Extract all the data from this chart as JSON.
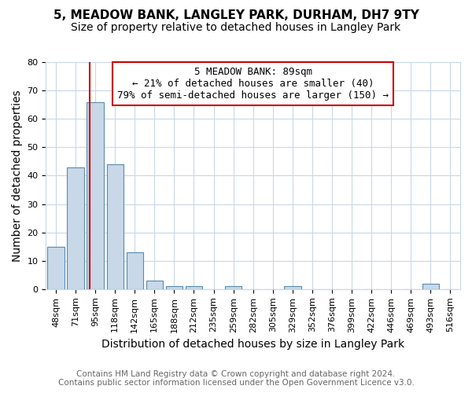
{
  "title": "5, MEADOW BANK, LANGLEY PARK, DURHAM, DH7 9TY",
  "subtitle": "Size of property relative to detached houses in Langley Park",
  "xlabel": "Distribution of detached houses by size in Langley Park",
  "ylabel": "Number of detached properties",
  "categories": [
    "48sqm",
    "71sqm",
    "95sqm",
    "118sqm",
    "142sqm",
    "165sqm",
    "188sqm",
    "212sqm",
    "235sqm",
    "259sqm",
    "282sqm",
    "305sqm",
    "329sqm",
    "352sqm",
    "376sqm",
    "399sqm",
    "422sqm",
    "446sqm",
    "469sqm",
    "493sqm",
    "516sqm"
  ],
  "values": [
    15,
    43,
    66,
    44,
    13,
    3,
    1,
    1,
    0,
    1,
    0,
    0,
    1,
    0,
    0,
    0,
    0,
    0,
    0,
    2,
    0
  ],
  "bar_color": "#c8d8e8",
  "bar_edge_color": "#5a8ab0",
  "red_line_x": 1.72,
  "annotation_text_line1": "5 MEADOW BANK: 89sqm",
  "annotation_text_line2": "← 21% of detached houses are smaller (40)",
  "annotation_text_line3": "79% of semi-detached houses are larger (150) →",
  "annotation_box_color": "#ffffff",
  "annotation_box_edge_color": "#cc0000",
  "red_line_color": "#cc0000",
  "ylim": [
    0,
    80
  ],
  "yticks": [
    0,
    10,
    20,
    30,
    40,
    50,
    60,
    70,
    80
  ],
  "footer_line1": "Contains HM Land Registry data © Crown copyright and database right 2024.",
  "footer_line2": "Contains public sector information licensed under the Open Government Licence v3.0.",
  "bg_color": "#ffffff",
  "grid_color": "#c8d8e8",
  "title_fontsize": 11,
  "subtitle_fontsize": 10,
  "axis_label_fontsize": 10,
  "tick_fontsize": 8,
  "footer_fontsize": 7.5,
  "annotation_fontsize": 9
}
